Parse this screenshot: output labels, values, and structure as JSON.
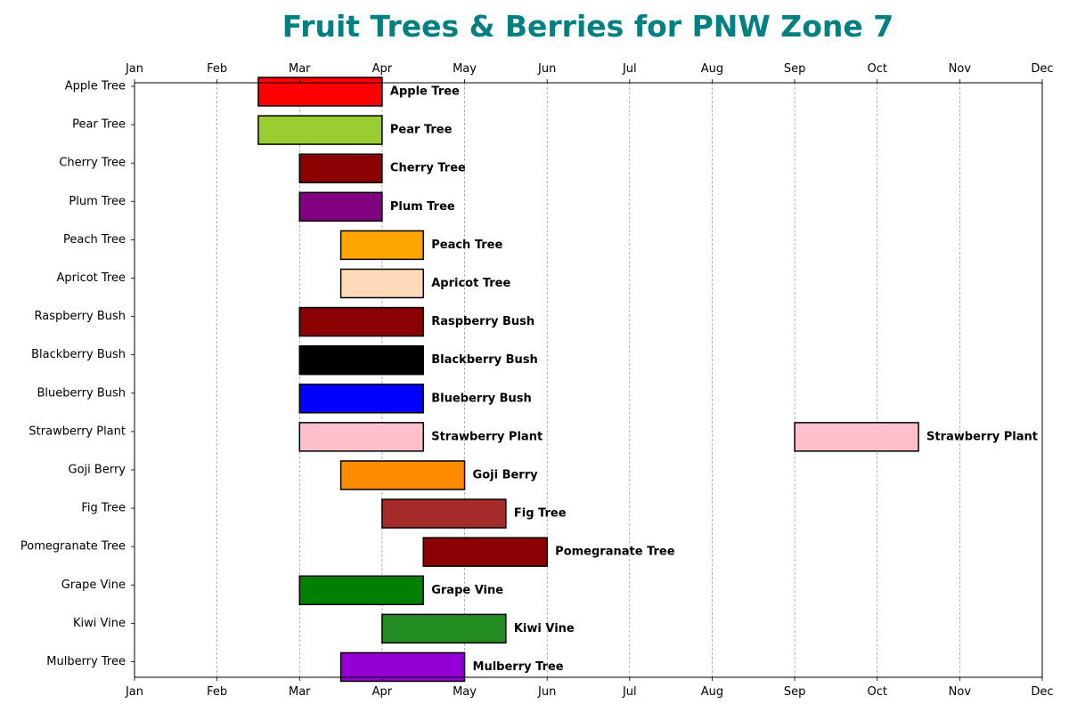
{
  "chart_data": {
    "type": "bar",
    "orientation": "horizontal",
    "title": "Fruit Trees & Berries for PNW Zone 7",
    "title_color": "#008080",
    "x_ticks": [
      "Jan",
      "Feb",
      "Mar",
      "Apr",
      "May",
      "Jun",
      "Jul",
      "Aug",
      "Sep",
      "Oct",
      "Nov",
      "Dec"
    ],
    "xlim": [
      1,
      12
    ],
    "grid": "vertical dashed",
    "categories": [
      "Apple Tree",
      "Pear Tree",
      "Cherry Tree",
      "Plum Tree",
      "Peach Tree",
      "Apricot Tree",
      "Raspberry Bush",
      "Blackberry Bush",
      "Blueberry Bush",
      "Strawberry Plant",
      "Goji Berry",
      "Fig Tree",
      "Pomegranate Tree",
      "Grape Vine",
      "Kiwi Vine",
      "Mulberry Tree"
    ],
    "plants": [
      {
        "name": "Apple Tree",
        "color": "#ff0000",
        "windows": [
          {
            "start": 2.5,
            "end": 4.0
          }
        ]
      },
      {
        "name": "Pear Tree",
        "color": "#9acd32",
        "windows": [
          {
            "start": 2.5,
            "end": 4.0
          }
        ]
      },
      {
        "name": "Cherry Tree",
        "color": "#8b0000",
        "windows": [
          {
            "start": 3.0,
            "end": 4.0
          }
        ]
      },
      {
        "name": "Plum Tree",
        "color": "#800080",
        "windows": [
          {
            "start": 3.0,
            "end": 4.0
          }
        ]
      },
      {
        "name": "Peach Tree",
        "color": "#ffa500",
        "windows": [
          {
            "start": 3.5,
            "end": 4.5
          }
        ]
      },
      {
        "name": "Apricot Tree",
        "color": "#ffdab9",
        "windows": [
          {
            "start": 3.5,
            "end": 4.5
          }
        ]
      },
      {
        "name": "Raspberry Bush",
        "color": "#8b0000",
        "windows": [
          {
            "start": 3.0,
            "end": 4.5
          }
        ]
      },
      {
        "name": "Blackberry Bush",
        "color": "#000000",
        "windows": [
          {
            "start": 3.0,
            "end": 4.5
          }
        ]
      },
      {
        "name": "Blueberry Bush",
        "color": "#0000ff",
        "windows": [
          {
            "start": 3.0,
            "end": 4.5
          }
        ]
      },
      {
        "name": "Strawberry Plant",
        "color": "#ffc0cb",
        "windows": [
          {
            "start": 3.0,
            "end": 4.5
          },
          {
            "start": 9.0,
            "end": 10.5
          }
        ]
      },
      {
        "name": "Goji Berry",
        "color": "#ff8c00",
        "windows": [
          {
            "start": 3.5,
            "end": 5.0
          }
        ]
      },
      {
        "name": "Fig Tree",
        "color": "#a52a2a",
        "windows": [
          {
            "start": 4.0,
            "end": 5.5
          }
        ]
      },
      {
        "name": "Pomegranate Tree",
        "color": "#8b0000",
        "windows": [
          {
            "start": 4.5,
            "end": 6.0
          }
        ]
      },
      {
        "name": "Grape Vine",
        "color": "#008000",
        "windows": [
          {
            "start": 3.0,
            "end": 4.5
          }
        ]
      },
      {
        "name": "Kiwi Vine",
        "color": "#228b22",
        "windows": [
          {
            "start": 4.0,
            "end": 5.5
          }
        ]
      },
      {
        "name": "Mulberry Tree",
        "color": "#9400d3",
        "windows": [
          {
            "start": 3.5,
            "end": 5.0
          }
        ]
      }
    ]
  }
}
